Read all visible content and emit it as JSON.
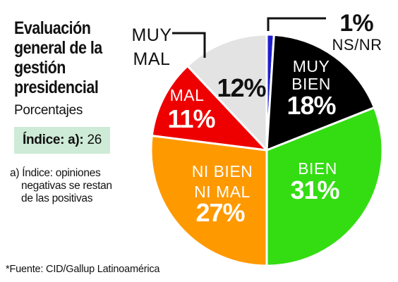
{
  "header": {
    "title": "Evaluación general de la gestión presidencial",
    "subtitle": "Porcentajes"
  },
  "index": {
    "label": "Índice: a):",
    "value": "26"
  },
  "footnote": {
    "line1": "a) Índice: opiniones",
    "line2": "negativas se restan",
    "line3": "de las positivas"
  },
  "source": "*Fuente: CID/Gallup Latinoamérica",
  "chart_data": {
    "type": "pie",
    "title": "Evaluación general de la gestión presidencial",
    "unit": "%",
    "slices": [
      {
        "label": "NS/NR",
        "value": 1,
        "value_label": "1%",
        "color": "#1f1fcc"
      },
      {
        "label": "MUY BIEN",
        "value": 18,
        "value_label": "18%",
        "color": "#000000"
      },
      {
        "label": "BIEN",
        "value": 31,
        "value_label": "31%",
        "color": "#33dd11"
      },
      {
        "label": "NI BIEN NI MAL",
        "value": 27,
        "value_label": "27%",
        "color": "#ff9900"
      },
      {
        "label": "MAL",
        "value": 11,
        "value_label": "11%",
        "color": "#ee0000"
      },
      {
        "label": "MUY MAL",
        "value": 12,
        "value_label": "12%",
        "color": "#e3e3e3"
      }
    ],
    "start": "12 o'clock, clockwise"
  }
}
